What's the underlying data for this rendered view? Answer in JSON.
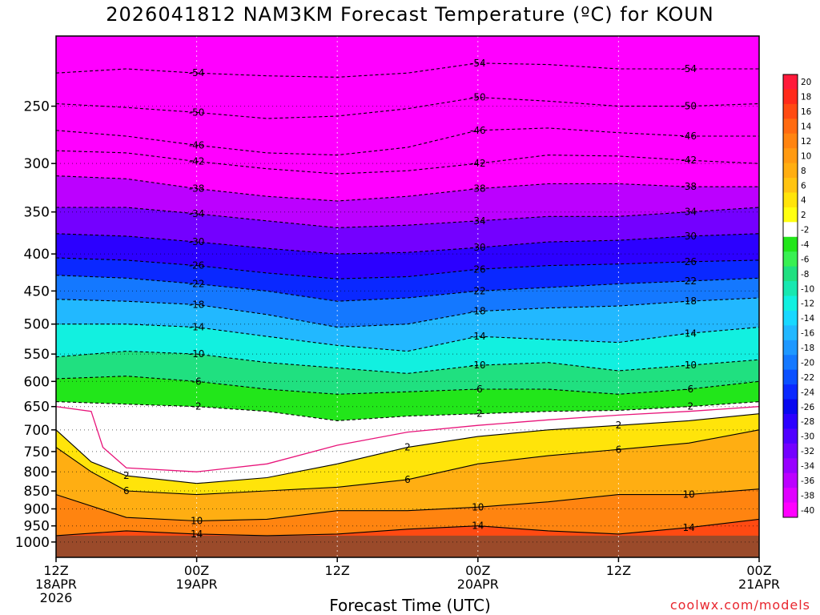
{
  "chart_data": {
    "type": "heatmap",
    "title": "2026041812 NAM3KM Forecast Temperature (ºC) for KOUN",
    "xlabel": "Forecast Time (UTC)",
    "ylabel": "",
    "x_ticks": [
      {
        "lines": [
          "12Z",
          "18APR",
          "2026"
        ]
      },
      {
        "lines": [
          "00Z",
          "19APR"
        ]
      },
      {
        "lines": [
          "12Z"
        ]
      },
      {
        "lines": [
          "00Z",
          "20APR"
        ]
      },
      {
        "lines": [
          "12Z"
        ]
      },
      {
        "lines": [
          "00Z",
          "21APR"
        ]
      }
    ],
    "x_hours": [
      0,
      12,
      24,
      36,
      48,
      60
    ],
    "xlim": [
      0,
      60
    ],
    "y_ticks": [
      250,
      300,
      350,
      400,
      450,
      500,
      550,
      600,
      650,
      700,
      750,
      800,
      850,
      900,
      950,
      1000
    ],
    "ylim_hPa": [
      200,
      1050
    ],
    "y_scale": "log-pressure (inverted)",
    "grid": true,
    "ground_top_hPa": 980,
    "colorbar": {
      "labels": [
        "20",
        "18",
        "16",
        "14",
        "12",
        "10",
        "8",
        "6",
        "4",
        "2",
        "-2",
        "-4",
        "-6",
        "-8",
        "-10",
        "-12",
        "-14",
        "-16",
        "-18",
        "-20",
        "-22",
        "-24",
        "-26",
        "-28",
        "-30",
        "-32",
        "-34",
        "-36",
        "-38",
        "-40"
      ],
      "colors": [
        "#ff1a3a",
        "#ff2a1a",
        "#ff4a12",
        "#ff6a10",
        "#ff8410",
        "#ff9a12",
        "#ffae12",
        "#ffc412",
        "#ffe40a",
        "#ffff10",
        "#ffffff",
        "#22e61a",
        "#38f052",
        "#20e080",
        "#18e8b0",
        "#12f0e0",
        "#18d8ff",
        "#22b8ff",
        "#1e98ff",
        "#1478ff",
        "#0a50ff",
        "#0a28ff",
        "#0808f0",
        "#2c00ff",
        "#5000ff",
        "#7400ff",
        "#9800ff",
        "#bc00ff",
        "#e000ff",
        "#ff00ff"
      ]
    },
    "isotherms": [
      {
        "temp_c": -54,
        "points": [
          [
            0,
            225
          ],
          [
            6,
            222
          ],
          [
            12,
            225
          ],
          [
            18,
            227
          ],
          [
            24,
            228
          ],
          [
            30,
            225
          ],
          [
            36,
            218
          ],
          [
            42,
            219
          ],
          [
            48,
            222
          ],
          [
            54,
            222
          ],
          [
            60,
            222
          ]
        ]
      },
      {
        "temp_c": -50,
        "points": [
          [
            0,
            248
          ],
          [
            6,
            251
          ],
          [
            12,
            255
          ],
          [
            18,
            260
          ],
          [
            24,
            258
          ],
          [
            30,
            252
          ],
          [
            36,
            243
          ],
          [
            42,
            246
          ],
          [
            48,
            250
          ],
          [
            54,
            250
          ],
          [
            60,
            248
          ]
        ]
      },
      {
        "temp_c": -46,
        "points": [
          [
            0,
            270
          ],
          [
            6,
            275
          ],
          [
            12,
            283
          ],
          [
            18,
            290
          ],
          [
            24,
            292
          ],
          [
            30,
            285
          ],
          [
            36,
            270
          ],
          [
            42,
            268
          ],
          [
            48,
            272
          ],
          [
            54,
            275
          ],
          [
            60,
            275
          ]
        ]
      },
      {
        "temp_c": -42,
        "points": [
          [
            0,
            288
          ],
          [
            6,
            290
          ],
          [
            12,
            298
          ],
          [
            18,
            305
          ],
          [
            24,
            310
          ],
          [
            30,
            307
          ],
          [
            36,
            300
          ],
          [
            42,
            292
          ],
          [
            48,
            293
          ],
          [
            54,
            297
          ],
          [
            60,
            300
          ]
        ]
      },
      {
        "temp_c": -38,
        "points": [
          [
            0,
            312
          ],
          [
            6,
            315
          ],
          [
            12,
            325
          ],
          [
            18,
            333
          ],
          [
            24,
            338
          ],
          [
            30,
            333
          ],
          [
            36,
            325
          ],
          [
            42,
            320
          ],
          [
            48,
            320
          ],
          [
            54,
            323
          ],
          [
            60,
            323
          ]
        ]
      },
      {
        "temp_c": -34,
        "points": [
          [
            0,
            345
          ],
          [
            6,
            345
          ],
          [
            12,
            352
          ],
          [
            18,
            360
          ],
          [
            24,
            368
          ],
          [
            30,
            365
          ],
          [
            36,
            360
          ],
          [
            42,
            355
          ],
          [
            48,
            355
          ],
          [
            54,
            350
          ],
          [
            60,
            345
          ]
        ]
      },
      {
        "temp_c": -30,
        "points": [
          [
            0,
            375
          ],
          [
            6,
            378
          ],
          [
            12,
            385
          ],
          [
            18,
            393
          ],
          [
            24,
            400
          ],
          [
            30,
            398
          ],
          [
            36,
            392
          ],
          [
            42,
            385
          ],
          [
            48,
            383
          ],
          [
            54,
            378
          ],
          [
            60,
            375
          ]
        ]
      },
      {
        "temp_c": -26,
        "points": [
          [
            0,
            405
          ],
          [
            6,
            408
          ],
          [
            12,
            415
          ],
          [
            18,
            425
          ],
          [
            24,
            433
          ],
          [
            30,
            430
          ],
          [
            36,
            420
          ],
          [
            42,
            415
          ],
          [
            48,
            413
          ],
          [
            54,
            410
          ],
          [
            60,
            408
          ]
        ]
      },
      {
        "temp_c": -22,
        "points": [
          [
            0,
            428
          ],
          [
            6,
            432
          ],
          [
            12,
            440
          ],
          [
            18,
            450
          ],
          [
            24,
            465
          ],
          [
            30,
            460
          ],
          [
            36,
            450
          ],
          [
            42,
            445
          ],
          [
            48,
            440
          ],
          [
            54,
            436
          ],
          [
            60,
            432
          ]
        ]
      },
      {
        "temp_c": -18,
        "points": [
          [
            0,
            462
          ],
          [
            6,
            465
          ],
          [
            12,
            470
          ],
          [
            18,
            485
          ],
          [
            24,
            505
          ],
          [
            30,
            500
          ],
          [
            36,
            480
          ],
          [
            42,
            475
          ],
          [
            48,
            472
          ],
          [
            54,
            465
          ],
          [
            60,
            460
          ]
        ]
      },
      {
        "temp_c": -14,
        "points": [
          [
            0,
            500
          ],
          [
            6,
            500
          ],
          [
            12,
            505
          ],
          [
            18,
            520
          ],
          [
            24,
            535
          ],
          [
            30,
            545
          ],
          [
            36,
            520
          ],
          [
            42,
            525
          ],
          [
            48,
            530
          ],
          [
            54,
            515
          ],
          [
            60,
            505
          ]
        ]
      },
      {
        "temp_c": -10,
        "points": [
          [
            0,
            555
          ],
          [
            6,
            545
          ],
          [
            12,
            550
          ],
          [
            18,
            565
          ],
          [
            24,
            575
          ],
          [
            30,
            585
          ],
          [
            36,
            570
          ],
          [
            42,
            565
          ],
          [
            48,
            580
          ],
          [
            54,
            570
          ],
          [
            60,
            560
          ]
        ]
      },
      {
        "temp_c": -6,
        "points": [
          [
            0,
            595
          ],
          [
            6,
            590
          ],
          [
            12,
            600
          ],
          [
            18,
            615
          ],
          [
            24,
            625
          ],
          [
            30,
            620
          ],
          [
            36,
            615
          ],
          [
            42,
            615
          ],
          [
            48,
            625
          ],
          [
            54,
            615
          ],
          [
            60,
            600
          ]
        ]
      },
      {
        "temp_c": -2,
        "points": [
          [
            0,
            640
          ],
          [
            6,
            645
          ],
          [
            12,
            650
          ],
          [
            18,
            660
          ],
          [
            24,
            680
          ],
          [
            30,
            670
          ],
          [
            36,
            665
          ],
          [
            42,
            660
          ],
          [
            48,
            658
          ],
          [
            54,
            650
          ],
          [
            60,
            640
          ]
        ]
      },
      {
        "temp_c": 2,
        "points": [
          [
            0,
            700
          ],
          [
            3,
            775
          ],
          [
            6,
            810
          ],
          [
            12,
            830
          ],
          [
            18,
            815
          ],
          [
            24,
            780
          ],
          [
            30,
            740
          ],
          [
            36,
            715
          ],
          [
            42,
            700
          ],
          [
            48,
            690
          ],
          [
            54,
            680
          ],
          [
            60,
            665
          ]
        ]
      },
      {
        "temp_c": 6,
        "points": [
          [
            0,
            740
          ],
          [
            3,
            800
          ],
          [
            6,
            850
          ],
          [
            12,
            860
          ],
          [
            18,
            850
          ],
          [
            24,
            840
          ],
          [
            30,
            820
          ],
          [
            36,
            780
          ],
          [
            42,
            760
          ],
          [
            48,
            745
          ],
          [
            54,
            730
          ],
          [
            60,
            700
          ]
        ]
      },
      {
        "temp_c": 10,
        "points": [
          [
            0,
            860
          ],
          [
            6,
            925
          ],
          [
            12,
            935
          ],
          [
            18,
            930
          ],
          [
            24,
            905
          ],
          [
            30,
            905
          ],
          [
            36,
            895
          ],
          [
            42,
            880
          ],
          [
            48,
            860
          ],
          [
            54,
            860
          ],
          [
            60,
            845
          ]
        ]
      },
      {
        "temp_c": 14,
        "points": [
          [
            0,
            980
          ],
          [
            6,
            965
          ],
          [
            12,
            975
          ],
          [
            18,
            980
          ],
          [
            24,
            975
          ],
          [
            30,
            960
          ],
          [
            36,
            950
          ],
          [
            42,
            965
          ],
          [
            48,
            975
          ],
          [
            54,
            955
          ],
          [
            60,
            930
          ]
        ]
      }
    ],
    "freezing_line": {
      "temp_c": 0,
      "points": [
        [
          0,
          650
        ],
        [
          3,
          660
        ],
        [
          4,
          740
        ],
        [
          6,
          790
        ],
        [
          12,
          800
        ],
        [
          18,
          780
        ],
        [
          24,
          735
        ],
        [
          30,
          705
        ],
        [
          36,
          690
        ],
        [
          42,
          678
        ],
        [
          48,
          668
        ],
        [
          54,
          660
        ],
        [
          60,
          650
        ]
      ]
    }
  },
  "credit": "coolwx.com/models",
  "colors": {
    "ground": "#9a4a2a",
    "frame": "#000000",
    "credit": "#e8262e",
    "freezing_line": "#e8147a"
  }
}
